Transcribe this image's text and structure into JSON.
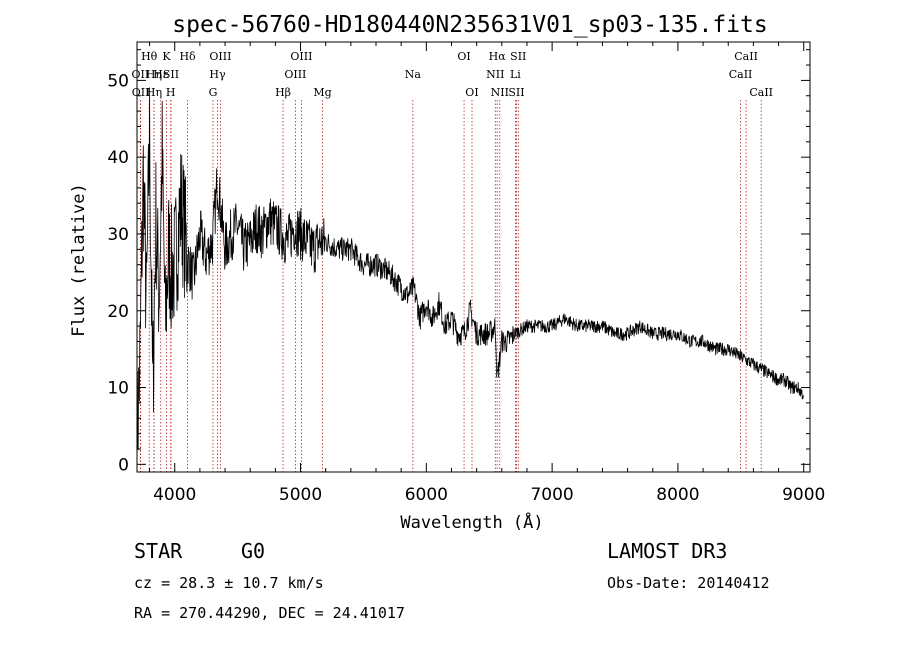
{
  "chart_data": {
    "type": "line",
    "title": "spec-56760-HD180440N235631V01_sp03-135.fits",
    "xlabel": "Wavelength (Å)",
    "ylabel": "Flux (relative)",
    "xlim": [
      3700,
      9050
    ],
    "ylim": [
      -1,
      55
    ],
    "xticks": [
      4000,
      5000,
      6000,
      7000,
      8000,
      9000
    ],
    "yticks": [
      0,
      10,
      20,
      30,
      40,
      50
    ],
    "series": [
      {
        "name": "spectrum",
        "x": [
          3700,
          3725,
          3750,
          3775,
          3800,
          3825,
          3850,
          3875,
          3900,
          3925,
          3950,
          3975,
          4000,
          4050,
          4100,
          4150,
          4200,
          4250,
          4300,
          4340,
          4400,
          4450,
          4500,
          4550,
          4600,
          4650,
          4700,
          4750,
          4800,
          4850,
          4900,
          4950,
          5000,
          5050,
          5100,
          5150,
          5200,
          5300,
          5400,
          5500,
          5600,
          5700,
          5800,
          5850,
          5900,
          5950,
          6000,
          6050,
          6100,
          6150,
          6200,
          6250,
          6300,
          6350,
          6400,
          6450,
          6500,
          6550,
          6563,
          6600,
          6650,
          6700,
          6800,
          6900,
          7000,
          7100,
          7200,
          7300,
          7400,
          7500,
          7600,
          7700,
          7800,
          7900,
          8000,
          8100,
          8200,
          8300,
          8400,
          8500,
          8600,
          8700,
          8800,
          8850,
          8900,
          8950,
          9000
        ],
        "y": [
          3,
          14,
          38,
          20,
          43,
          9,
          32,
          22,
          40,
          18,
          28,
          25,
          26,
          34,
          27,
          24,
          30,
          27,
          29,
          37,
          28,
          30,
          31,
          28,
          29,
          31,
          30,
          32,
          31,
          30,
          29,
          31,
          30,
          29,
          28,
          29,
          29,
          28,
          28,
          26,
          26,
          25,
          23,
          22,
          23,
          19,
          21,
          19,
          21,
          18,
          19,
          17,
          17,
          20,
          17,
          17,
          17,
          18,
          11,
          16,
          16,
          17,
          18,
          18,
          18,
          19,
          18,
          18,
          18,
          17,
          17,
          18,
          17,
          17,
          17,
          16,
          16,
          15,
          15,
          14,
          13,
          12,
          11,
          11,
          10,
          10,
          9
        ]
      }
    ],
    "lines": [
      {
        "name": "OII",
        "w": 3727,
        "row": 1
      },
      {
        "name": "OII",
        "w": 3729,
        "row": 2
      },
      {
        "name": "Hθ",
        "w": 3797,
        "row": 0
      },
      {
        "name": "Hη",
        "w": 3835,
        "row": 1
      },
      {
        "name": "Hη",
        "w": 3835,
        "row": 2
      },
      {
        "name": "Hε",
        "w": 3889,
        "row": 1
      },
      {
        "name": "K",
        "w": 3934,
        "row": 0
      },
      {
        "name": "SII",
        "w": 3970,
        "row": 1
      },
      {
        "name": "H",
        "w": 3968,
        "row": 2
      },
      {
        "name": "Hδ",
        "w": 4102,
        "row": 0
      },
      {
        "name": "OIII",
        "w": 4363,
        "row": 0
      },
      {
        "name": "Hγ",
        "w": 4340,
        "row": 1
      },
      {
        "name": "G",
        "w": 4304,
        "row": 2
      },
      {
        "name": "Hβ",
        "w": 4861,
        "row": 2
      },
      {
        "name": "OIII",
        "w": 4959,
        "row": 1
      },
      {
        "name": "OIII",
        "w": 5007,
        "row": 0
      },
      {
        "name": "Mg",
        "w": 5175,
        "row": 2
      },
      {
        "name": "Na",
        "w": 5893,
        "row": 1
      },
      {
        "name": "OI",
        "w": 6300,
        "row": 0
      },
      {
        "name": "OI",
        "w": 6363,
        "row": 2
      },
      {
        "name": "NII",
        "w": 6548,
        "row": 1
      },
      {
        "name": "Hα",
        "w": 6563,
        "row": 0
      },
      {
        "name": "NII",
        "w": 6584,
        "row": 2
      },
      {
        "name": "SII",
        "w": 6717,
        "row": 2
      },
      {
        "name": "SII",
        "w": 6731,
        "row": 0
      },
      {
        "name": "Li",
        "w": 6708,
        "row": 1
      },
      {
        "name": "CaII",
        "w": 8498,
        "row": 1
      },
      {
        "name": "CaII",
        "w": 8542,
        "row": 0
      },
      {
        "name": "CaII",
        "w": 8662,
        "row": 2
      }
    ]
  },
  "footer": {
    "class_label": "STAR",
    "subclass": "G0",
    "survey": "LAMOST DR3",
    "cz": "cz = 28.3 ± 10.7 km/s",
    "obs_date": "Obs-Date: 20140412",
    "coords": "RA = 270.44290, DEC =  24.41017"
  }
}
